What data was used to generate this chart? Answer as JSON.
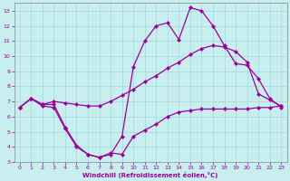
{
  "xlabel": "Windchill (Refroidissement éolien,°C)",
  "background_color": "#c8eef0",
  "grid_color": "#aadddd",
  "line_color": "#990099",
  "xlim": [
    -0.5,
    23.5
  ],
  "ylim": [
    3,
    13.5
  ],
  "xticks": [
    0,
    1,
    2,
    3,
    4,
    5,
    6,
    7,
    8,
    9,
    10,
    11,
    12,
    13,
    14,
    15,
    16,
    17,
    18,
    19,
    20,
    21,
    22,
    23
  ],
  "yticks": [
    3,
    4,
    5,
    6,
    7,
    8,
    9,
    10,
    11,
    12,
    13
  ],
  "series1_x": [
    0,
    1,
    2,
    3,
    4,
    5,
    6,
    7,
    8,
    9,
    10,
    11,
    12,
    13,
    14,
    15,
    16,
    17,
    18,
    19,
    20,
    21,
    22,
    23
  ],
  "series1_y": [
    6.6,
    7.2,
    6.8,
    6.8,
    5.3,
    4.1,
    3.5,
    3.3,
    3.6,
    3.5,
    4.7,
    5.1,
    5.5,
    6.0,
    6.3,
    6.4,
    6.5,
    6.5,
    6.5,
    6.5,
    6.5,
    6.6,
    6.6,
    6.7
  ],
  "series2_x": [
    0,
    1,
    2,
    3,
    4,
    5,
    6,
    7,
    8,
    9,
    10,
    11,
    12,
    13,
    14,
    15,
    16,
    17,
    18,
    19,
    20,
    21,
    22,
    23
  ],
  "series2_y": [
    6.6,
    7.2,
    6.8,
    7.0,
    6.9,
    6.8,
    6.7,
    6.7,
    7.0,
    7.4,
    7.8,
    8.3,
    8.7,
    9.2,
    9.6,
    10.1,
    10.5,
    10.7,
    10.6,
    10.3,
    9.6,
    7.5,
    7.1,
    6.7
  ],
  "series3_x": [
    0,
    1,
    2,
    3,
    4,
    5,
    6,
    7,
    8,
    9,
    10,
    11,
    12,
    13,
    14,
    15,
    16,
    17,
    18,
    19,
    20,
    21,
    22,
    23
  ],
  "series3_y": [
    6.6,
    7.2,
    6.7,
    6.6,
    5.2,
    4.0,
    3.5,
    3.3,
    3.5,
    4.7,
    9.3,
    11.0,
    12.0,
    12.2,
    11.1,
    13.2,
    13.0,
    12.0,
    10.7,
    9.5,
    9.4,
    8.5,
    7.2,
    6.6
  ]
}
